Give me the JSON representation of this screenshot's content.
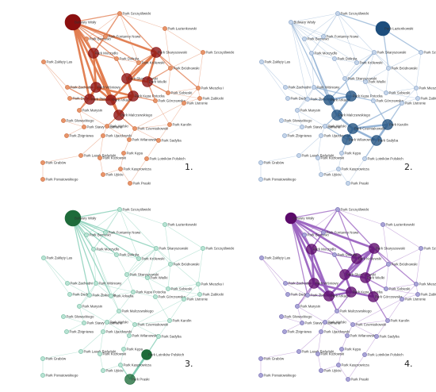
{
  "panels": [
    {
      "number": "1.",
      "node_color": "#e8956a",
      "node_stroke": "#c96a3c",
      "hub_color": "#8b0f0f",
      "edge_color": "#e07a4c",
      "hubs": [
        "Bulwary Wisły",
        "Park Wiśniowy",
        "Park Skaryszewski",
        "Park Szczęśliwicki",
        "Park Moczydło",
        "Park Kępa Potocka",
        "Park Pole Mokotowskie",
        "Park Arkadia"
      ]
    },
    {
      "number": "2.",
      "node_color": "#c5d5ea",
      "node_stroke": "#7f9cc2",
      "hub_color": "#1d4e7d",
      "edge_color": "#8fb0d4",
      "hubs": [
        "Park Łazienkowski",
        "Park Moczydło",
        "Park Arkadia",
        "Park Zachodni",
        "Pole Mokotowskie",
        "Park Kępa Potocka"
      ]
    },
    {
      "number": "3.",
      "node_color": "#b9e3d4",
      "node_stroke": "#6bb79b",
      "hub_color": "#1e6b3a",
      "edge_color": "#7ccbb1",
      "hubs": [
        "Bulwary Wisły",
        "Park Lotników Polskich",
        "Park Szczęśliwicki"
      ]
    },
    {
      "number": "4.",
      "node_color": "#a9a4d6",
      "node_stroke": "#6b63ad",
      "hub_color": "#5c0a6b",
      "edge_color": "#9a62c0",
      "hubs": [
        "Bulwary Wisły",
        "Park Skaryszewski",
        "Park Arkadia",
        "Park Moczydło",
        "Park Wiśniowy",
        "Pole Mokotowskie"
      ]
    }
  ],
  "nodes": [
    {
      "id": "n0",
      "label": "Bulwary Wisły"
    },
    {
      "id": "n1",
      "label": "Park Szczęśliwicki"
    },
    {
      "id": "n2",
      "label": "Park Łazienkowski"
    },
    {
      "id": "n3",
      "label": "Park Bemowo"
    },
    {
      "id": "n4",
      "label": "Park Skaryszewski"
    },
    {
      "id": "n5",
      "label": "Park Szczęśliwicki"
    },
    {
      "id": "n6",
      "label": "Park Królewski"
    },
    {
      "id": "n7",
      "label": "Park Bródnowski"
    },
    {
      "id": "n8",
      "label": "Park Fontanny Nowe"
    },
    {
      "id": "n9",
      "label": "Park Zaklęty Las"
    },
    {
      "id": "n10",
      "label": "Park Moczydło"
    },
    {
      "id": "n11",
      "label": "Park Dolinka"
    },
    {
      "id": "n12",
      "label": "Park Zachodni"
    },
    {
      "id": "n13",
      "label": "Park Wiśniowy"
    },
    {
      "id": "n14",
      "label": "Park Skaryszewski"
    },
    {
      "id": "n15",
      "label": "Park Wielki"
    },
    {
      "id": "n16",
      "label": "Park Sobieski"
    },
    {
      "id": "n17",
      "label": "Park Mieszka I"
    },
    {
      "id": "n18",
      "label": "Park Zabłocki"
    },
    {
      "id": "n19",
      "label": "Park Dudy"
    },
    {
      "id": "n20",
      "label": "Park Żbikowski"
    },
    {
      "id": "n21",
      "label": "Park Arkadia"
    },
    {
      "id": "n22",
      "label": "Park Kępa Potocka"
    },
    {
      "id": "n23",
      "label": "Park Górczewska"
    },
    {
      "id": "n24",
      "label": "Park Ustronie"
    },
    {
      "id": "n25",
      "label": "Park Marysin"
    },
    {
      "id": "n26",
      "label": "Park Malczewskiego"
    },
    {
      "id": "n27",
      "label": "Park Karolin"
    },
    {
      "id": "n28",
      "label": "Park Słowackiego"
    },
    {
      "id": "n29",
      "label": "Park Stawy Brustmana"
    },
    {
      "id": "n30",
      "label": "Park Wolski"
    },
    {
      "id": "n31",
      "label": "Park Czerniakowski"
    },
    {
      "id": "n32",
      "label": "Park Zbigniewa"
    },
    {
      "id": "n33",
      "label": "Park Ujazdowski"
    },
    {
      "id": "n34",
      "label": "Park Wilanowski"
    },
    {
      "id": "n35",
      "label": "Park Sadyba"
    },
    {
      "id": "n36",
      "label": "Park Lasek Bielański"
    },
    {
      "id": "n37",
      "label": "Park Kozłowski"
    },
    {
      "id": "n38",
      "label": "Park Kępa"
    },
    {
      "id": "n39",
      "label": "Park Lotników Polskich"
    },
    {
      "id": "n40",
      "label": "Park Grabów"
    },
    {
      "id": "n41",
      "label": "Park Poniatowskiego"
    },
    {
      "id": "n42",
      "label": "Park Praski"
    },
    {
      "id": "n43",
      "label": "Park Ujście"
    },
    {
      "id": "n44",
      "label": "Park Kasprowicza"
    }
  ]
}
